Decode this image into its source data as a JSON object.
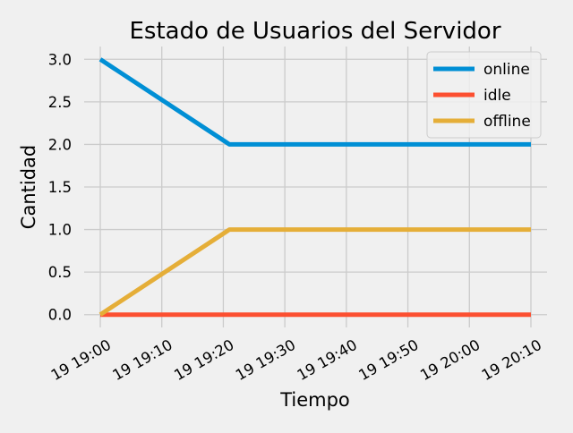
{
  "chart_data": {
    "type": "line",
    "title": "Estado de Usuarios del Servidor",
    "xlabel": "Tiempo",
    "ylabel": "Cantidad",
    "x": [
      "19 19:00",
      "19 19:21",
      "19 20:10"
    ],
    "x_ticks": [
      "19 19:00",
      "19 19:10",
      "19 19:20",
      "19 19:30",
      "19 19:40",
      "19 19:50",
      "19 20:00",
      "19 20:10"
    ],
    "y_ticks": [
      "0.0",
      "0.5",
      "1.0",
      "1.5",
      "2.0",
      "2.5",
      "3.0"
    ],
    "ylim": [
      -0.15,
      3.15
    ],
    "grid": true,
    "legend_position": "top-right",
    "series": [
      {
        "name": "online",
        "color": "#008fd5",
        "values": [
          3,
          2,
          2
        ]
      },
      {
        "name": "idle",
        "color": "#fc4f30",
        "values": [
          0,
          0,
          0
        ]
      },
      {
        "name": "offline",
        "color": "#e5ae38",
        "values": [
          0,
          1,
          1
        ]
      }
    ]
  }
}
